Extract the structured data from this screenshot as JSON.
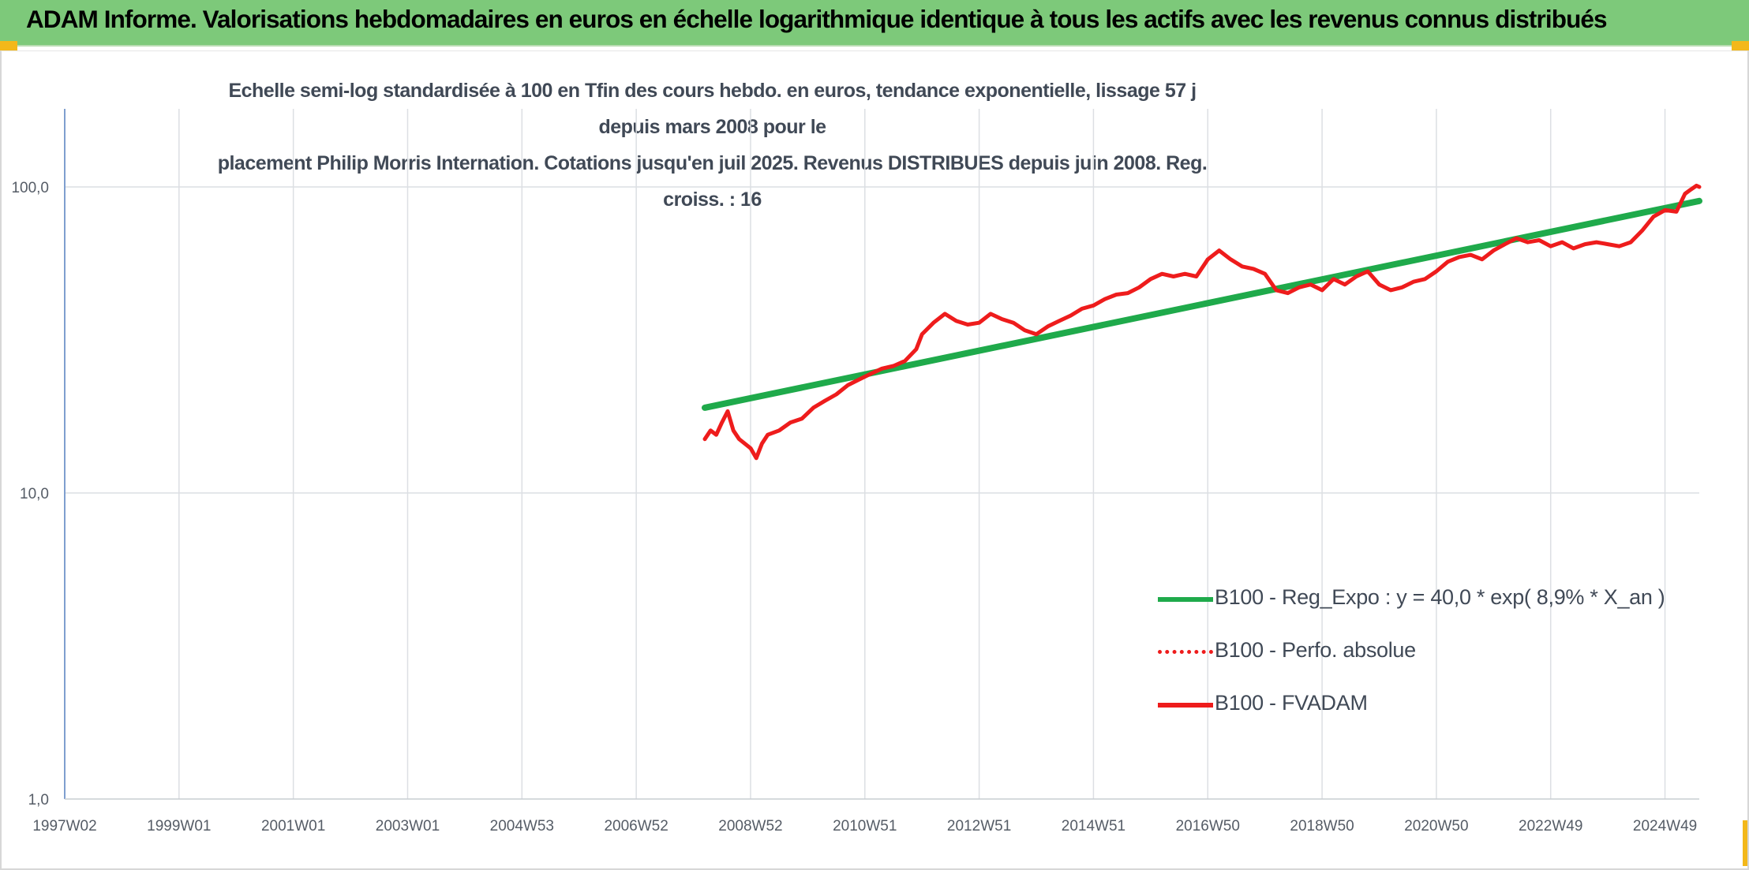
{
  "banner": {
    "title": "ADAM Informe. Valorisations hebdomadaires en euros en échelle logarithmique identique à tous les actifs avec les revenus connus distribués",
    "background": "#7dc97a"
  },
  "chart_data": {
    "type": "line",
    "title_lines": [
      "Echelle semi-log standardisée à 100 en Tfin des cours hebdo. en euros, tendance exponentielle, lissage 57 j depuis mars 2008 pour le",
      "placement Philip Morris Internation. Cotations jusqu'en juil 2025. Revenus DISTRIBUES depuis juin 2008. Reg. croiss. : 16"
    ],
    "xlabel": "",
    "ylabel": "",
    "y_scale": "log",
    "ylim": [
      1,
      180
    ],
    "y_ticks": [
      "100,0",
      "10,0",
      "1,0"
    ],
    "y_tick_values": [
      100,
      10,
      1
    ],
    "x_tick_labels": [
      "1997W02",
      "1999W01",
      "2001W01",
      "2003W01",
      "2004W53",
      "2006W52",
      "2008W52",
      "2010W51",
      "2012W51",
      "2014W51",
      "2016W50",
      "2018W50",
      "2020W50",
      "2022W49",
      "2024W49"
    ],
    "x_tick_years": [
      1997.0,
      1999.0,
      2001.0,
      2003.0,
      2005.0,
      2007.0,
      2009.0,
      2011.0,
      2013.0,
      2015.0,
      2017.0,
      2019.0,
      2021.0,
      2023.0,
      2025.0
    ],
    "xlim": [
      1997.0,
      2025.6
    ],
    "grid": true,
    "legend_position": "bottom-right",
    "series": [
      {
        "name": "B100 - Reg_Expo : y = 40,0 * exp( 8,9% *  X_an )",
        "color": "#1faa4b",
        "style": "solid",
        "x": [
          2008.2,
          2025.6
        ],
        "y": [
          19.0,
          90.0
        ]
      },
      {
        "name": "B100 - Perfo. absolue",
        "color": "#ee1c1c",
        "style": "dotted",
        "x": [],
        "y": []
      },
      {
        "name": "B100 - FVADAM",
        "color": "#ee1c1c",
        "style": "solid",
        "x": [
          2008.2,
          2008.3,
          2008.4,
          2008.5,
          2008.6,
          2008.7,
          2008.8,
          2008.9,
          2009.0,
          2009.1,
          2009.2,
          2009.3,
          2009.5,
          2009.7,
          2009.9,
          2010.1,
          2010.3,
          2010.5,
          2010.7,
          2010.9,
          2011.1,
          2011.3,
          2011.5,
          2011.7,
          2011.9,
          2012.0,
          2012.2,
          2012.4,
          2012.6,
          2012.8,
          2013.0,
          2013.2,
          2013.4,
          2013.6,
          2013.8,
          2014.0,
          2014.2,
          2014.4,
          2014.6,
          2014.8,
          2015.0,
          2015.2,
          2015.4,
          2015.6,
          2015.8,
          2016.0,
          2016.2,
          2016.4,
          2016.6,
          2016.8,
          2017.0,
          2017.2,
          2017.4,
          2017.6,
          2017.8,
          2018.0,
          2018.2,
          2018.4,
          2018.6,
          2018.8,
          2019.0,
          2019.2,
          2019.4,
          2019.6,
          2019.8,
          2020.0,
          2020.2,
          2020.4,
          2020.6,
          2020.8,
          2021.0,
          2021.2,
          2021.4,
          2021.6,
          2021.8,
          2022.0,
          2022.2,
          2022.4,
          2022.6,
          2022.8,
          2023.0,
          2023.2,
          2023.4,
          2023.6,
          2023.8,
          2024.0,
          2024.2,
          2024.4,
          2024.6,
          2024.8,
          2025.0,
          2025.2,
          2025.35,
          2025.45,
          2025.55,
          2025.6
        ],
        "y": [
          15.0,
          16.0,
          15.5,
          17.0,
          18.5,
          16.0,
          15.0,
          14.5,
          14.0,
          13.0,
          14.5,
          15.5,
          16.0,
          17.0,
          17.5,
          19.0,
          20.0,
          21.0,
          22.5,
          23.5,
          24.5,
          25.5,
          26.0,
          27.0,
          29.5,
          33.0,
          36.0,
          38.5,
          36.5,
          35.5,
          36.0,
          38.5,
          37.0,
          36.0,
          34.0,
          33.0,
          35.0,
          36.5,
          38.0,
          40.0,
          41.0,
          43.0,
          44.5,
          45.0,
          47.0,
          50.0,
          52.0,
          51.0,
          52.0,
          51.0,
          58.0,
          62.0,
          58.0,
          55.0,
          54.0,
          52.0,
          46.0,
          45.0,
          47.0,
          48.0,
          46.0,
          50.0,
          48.0,
          51.0,
          53.0,
          48.0,
          46.0,
          47.0,
          49.0,
          50.0,
          53.0,
          57.0,
          59.0,
          60.0,
          58.0,
          62.0,
          65.0,
          68.0,
          66.0,
          67.0,
          64.0,
          66.0,
          63.0,
          65.0,
          66.0,
          65.0,
          64.0,
          66.0,
          72.0,
          80.0,
          84.0,
          83.0,
          95.0,
          98.0,
          101.0,
          100.0
        ]
      }
    ]
  }
}
